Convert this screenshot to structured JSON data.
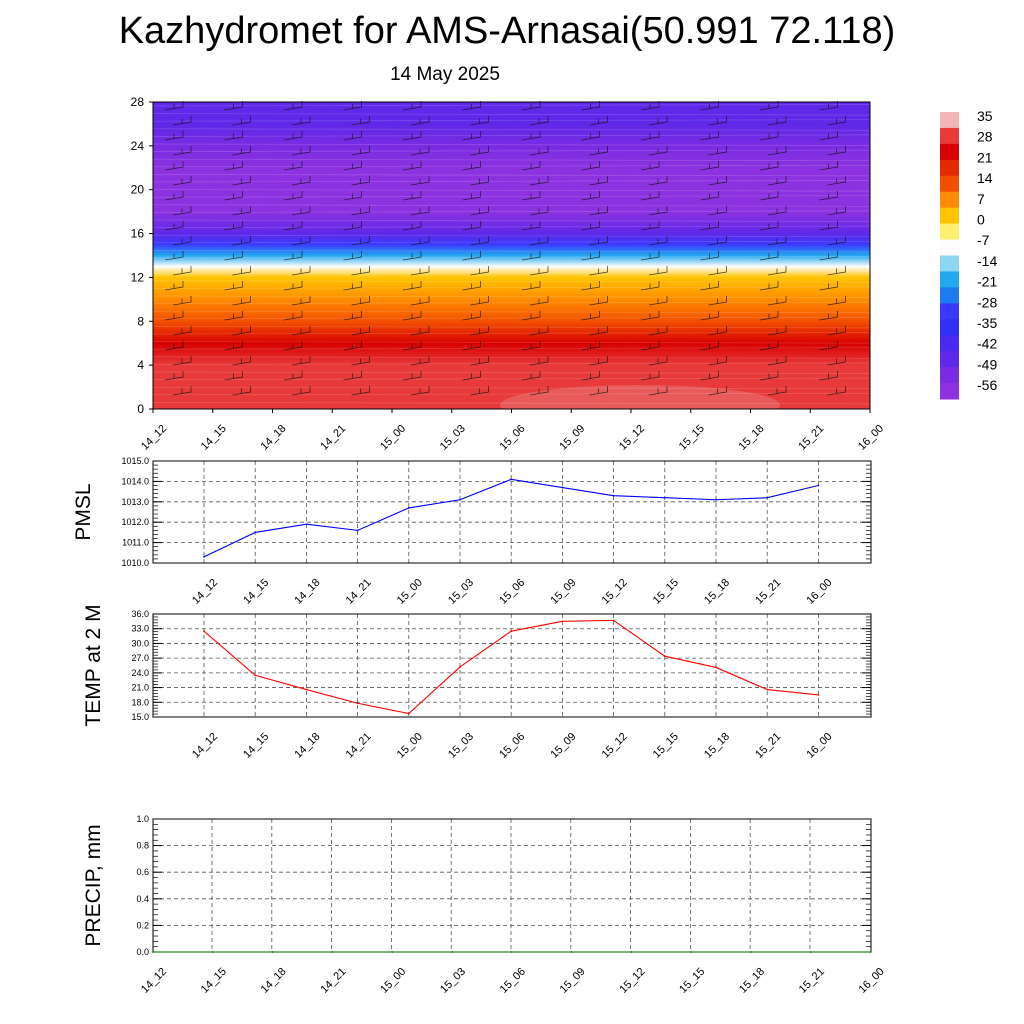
{
  "title": "Kazhydromet for AMS-Arnasai(50.991 72.118)",
  "subtitle": "14 May 2025",
  "chart_data": [
    {
      "type": "heatmap",
      "x_categories": [
        "14_12",
        "14_15",
        "14_18",
        "14_21",
        "15_00",
        "15_03",
        "15_06",
        "15_09",
        "15_12",
        "15_15",
        "15_18",
        "15_21",
        "16_00"
      ],
      "y_ticks": [
        0,
        4,
        8,
        12,
        16,
        20,
        24,
        28
      ],
      "ylim": [
        0,
        28
      ],
      "colorbar_labels": [
        "35",
        "28",
        "21",
        "14",
        "7",
        "0",
        "-7",
        "-14",
        "-21",
        "-28",
        "-35",
        "-42",
        "-49",
        "-56"
      ],
      "colorbar_values": [
        35,
        28,
        21,
        14,
        7,
        0,
        -7,
        -14,
        -21,
        -28,
        -35,
        -42,
        -49,
        -56
      ],
      "colorbar_colors": [
        "#f2b6b6",
        "#e83a3a",
        "#d80000",
        "#e62a00",
        "#f25000",
        "#ff8c00",
        "#ffc400",
        "#fff06e",
        "#fdfdfd",
        "#8ed6f0",
        "#22a8ee",
        "#1a7cf0",
        "#3a3aff",
        "#3030f8",
        "#4a2af0",
        "#6028e8",
        "#7a2ce2",
        "#8c32e0"
      ],
      "temperature_profile": [
        [
          0,
          28
        ],
        [
          2,
          27
        ],
        [
          4,
          25
        ],
        [
          6,
          20
        ],
        [
          8,
          13
        ],
        [
          10,
          6
        ],
        [
          12,
          0
        ],
        [
          13,
          -8
        ],
        [
          14,
          -18
        ],
        [
          15,
          -30
        ],
        [
          16,
          -42
        ],
        [
          18,
          -56
        ],
        [
          20,
          -55
        ],
        [
          22,
          -52
        ],
        [
          24,
          -50
        ],
        [
          26,
          -45
        ],
        [
          28,
          -42
        ]
      ]
    },
    {
      "type": "line",
      "ylabel": "PMSL",
      "categories": [
        "14_12",
        "14_15",
        "14_18",
        "14_21",
        "15_00",
        "15_03",
        "15_06",
        "15_09",
        "15_12",
        "15_15",
        "15_18",
        "15_21",
        "16_00"
      ],
      "y_ticks": [
        "1010.0",
        "1011.0",
        "1012.0",
        "1013.0",
        "1014.0",
        "1015.0"
      ],
      "ylim": [
        1010.0,
        1015.0
      ],
      "color": "#0000ff",
      "values": [
        1010.3,
        1011.5,
        1011.9,
        1011.6,
        1012.7,
        1013.1,
        1014.1,
        1013.7,
        1013.3,
        1013.2,
        1013.1,
        1013.2,
        1013.8
      ]
    },
    {
      "type": "line",
      "ylabel": "TEMP at 2 M",
      "categories": [
        "14_12",
        "14_15",
        "14_18",
        "14_21",
        "15_00",
        "15_03",
        "15_06",
        "15_09",
        "15_12",
        "15_15",
        "15_18",
        "15_21",
        "16_00"
      ],
      "y_ticks": [
        "15.0",
        "18.0",
        "21.0",
        "24.0",
        "27.0",
        "30.0",
        "33.0",
        "36.0"
      ],
      "ylim": [
        15.0,
        36.0
      ],
      "color": "#ff0000",
      "values": [
        32.5,
        23.5,
        20.6,
        17.8,
        15.7,
        25.2,
        32.5,
        34.5,
        34.7,
        27.4,
        25.1,
        20.6,
        19.5
      ]
    },
    {
      "type": "line",
      "ylabel": "PRECIP, mm",
      "categories": [
        "14_12",
        "14_15",
        "14_18",
        "14_21",
        "15_00",
        "15_03",
        "15_06",
        "15_09",
        "15_12",
        "15_15",
        "15_18",
        "15_21",
        "16_00"
      ],
      "y_ticks": [
        "0.0",
        "0.2",
        "0.4",
        "0.6",
        "0.8",
        "1.0"
      ],
      "ylim": [
        0.0,
        1.0
      ],
      "color": "#006400",
      "values": [
        0,
        0,
        0,
        0,
        0,
        0,
        0,
        0,
        0,
        0,
        0,
        0,
        0
      ]
    }
  ]
}
